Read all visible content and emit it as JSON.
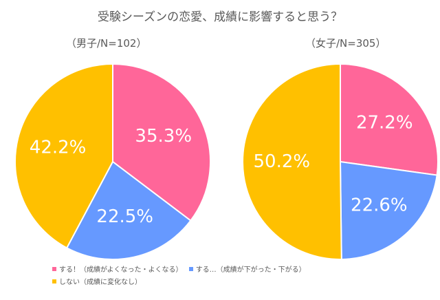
{
  "chart_data": [
    {
      "type": "pie",
      "title": "（男子/N=102）",
      "slices": [
        {
          "label": "する！（成績がよくなった・よくなる）",
          "value": 35.3,
          "display": "35.3%",
          "color": "#FF6699"
        },
        {
          "label": "する…（成績が下がった・下がる）",
          "value": 22.5,
          "display": "22.5%",
          "color": "#6699FF"
        },
        {
          "label": "しない（成績に変化なし）",
          "value": 42.2,
          "display": "42.2%",
          "color": "#FFC000"
        }
      ]
    },
    {
      "type": "pie",
      "title": "（女子/N=305）",
      "slices": [
        {
          "label": "する！（成績がよくなった・よくなる）",
          "value": 27.2,
          "display": "27.2%",
          "color": "#FF6699"
        },
        {
          "label": "する…（成績が下がった・下がる）",
          "value": 22.6,
          "display": "22.6%",
          "color": "#6699FF"
        },
        {
          "label": "しない（成績に変化なし）",
          "value": 50.2,
          "display": "50.2%",
          "color": "#FFC000"
        }
      ]
    }
  ],
  "title": "受験シーズンの恋愛、成績に影響すると思う？",
  "legend": [
    {
      "label": "する！（成績がよくなった・よくなる）",
      "color": "#FF6699"
    },
    {
      "label": "する…（成績が下がった・下がる）",
      "color": "#6699FF"
    },
    {
      "label": "しない（成績に変化なし）",
      "color": "#FFC000"
    }
  ]
}
